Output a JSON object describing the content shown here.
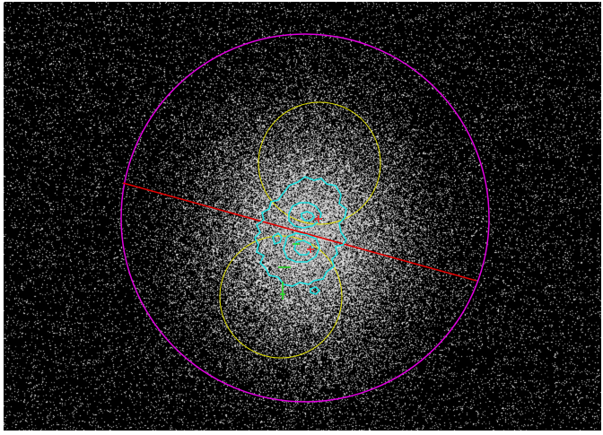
{
  "image": {
    "description_free": true,
    "colors": {
      "background": "#000000",
      "frame_border": "#ffffff",
      "noise": "#c8c8c8",
      "outer_circle": "#e000e0",
      "lobe_circle": "#e0e000",
      "axis_line": "#e00000",
      "contour": "#20e0e0",
      "marker_red": "#ff2020",
      "marker_green": "#20e020"
    }
  }
}
